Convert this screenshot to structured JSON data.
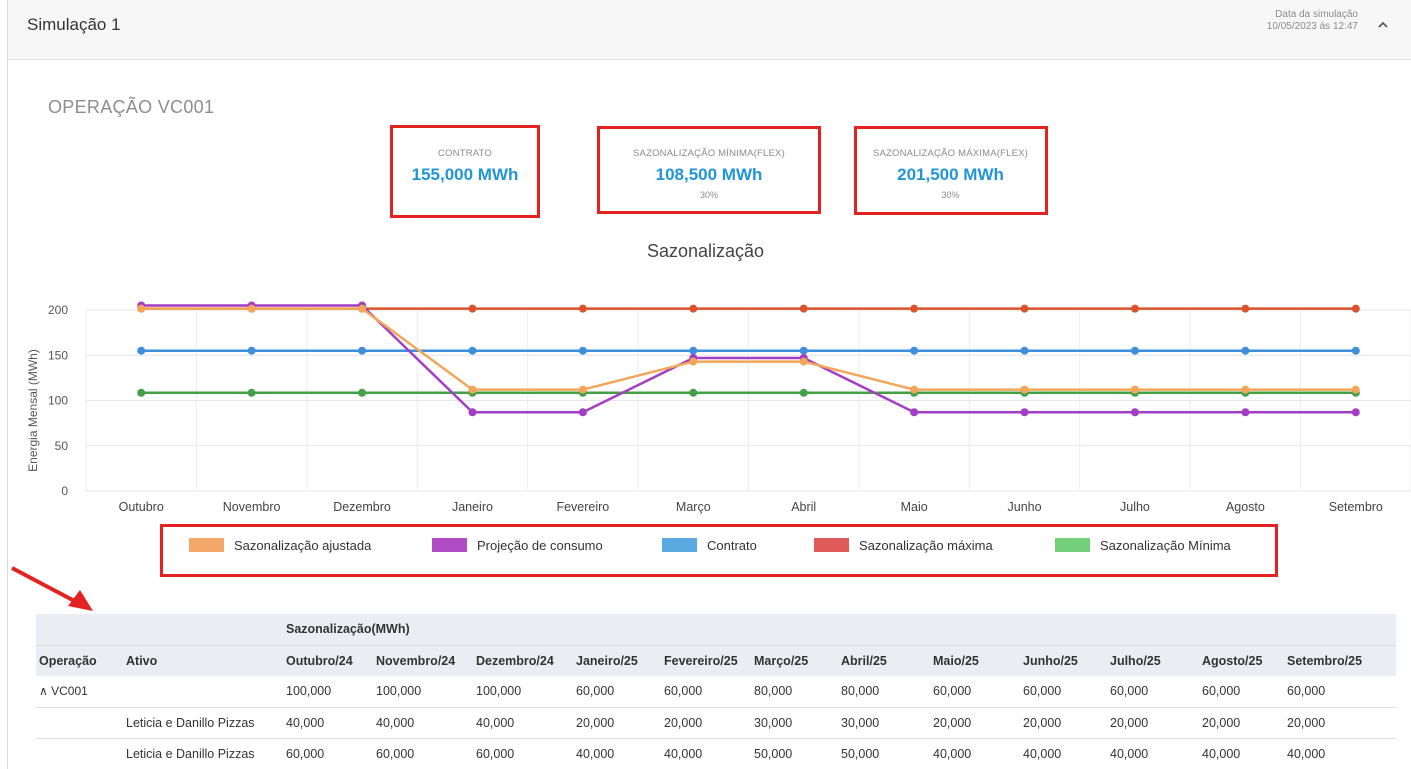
{
  "header": {
    "title": "Simulação 1",
    "date_label": "Data da simulação",
    "date_value": "10/05/2023 às 12:47"
  },
  "operation_title": "OPERAÇÃO VC001",
  "kpis": [
    {
      "label": "CONTRATO",
      "value": "155,000 MWh",
      "pct": ""
    },
    {
      "label": "SAZONALIZAÇÃO MÍNIMA(FLEX)",
      "value": "108,500 MWh",
      "pct": "30%"
    },
    {
      "label": "SAZONALIZAÇÃO MÁXIMA(FLEX)",
      "value": "201,500 MWh",
      "pct": "30%"
    }
  ],
  "chart_data": {
    "type": "line",
    "title": "Sazonalização",
    "ylabel": "Energia Mensal (MWh)",
    "xlabel": "",
    "ylim": [
      0,
      200
    ],
    "yticks": [
      0,
      50,
      100,
      150,
      200
    ],
    "categories": [
      "Outubro",
      "Novembro",
      "Dezembro",
      "Janeiro",
      "Fevereiro",
      "Março",
      "Abril",
      "Maio",
      "Junho",
      "Julho",
      "Agosto",
      "Setembro"
    ],
    "series": [
      {
        "name": "Sazonalização Mínima",
        "color": "#43a047",
        "values": [
          108.5,
          108.5,
          108.5,
          108.5,
          108.5,
          108.5,
          108.5,
          108.5,
          108.5,
          108.5,
          108.5,
          108.5
        ]
      },
      {
        "name": "Contrato",
        "color": "#3d8fdc",
        "values": [
          155,
          155,
          155,
          155,
          155,
          155,
          155,
          155,
          155,
          155,
          155,
          155
        ]
      },
      {
        "name": "Sazonalização máxima",
        "color": "#d9532c",
        "values": [
          201.5,
          201.5,
          201.5,
          201.5,
          201.5,
          201.5,
          201.5,
          201.5,
          201.5,
          201.5,
          201.5,
          201.5
        ]
      },
      {
        "name": "Projeção de consumo",
        "color": "#a23dc4",
        "values": [
          205,
          205,
          205,
          87,
          87,
          147,
          147,
          87,
          87,
          87,
          87,
          87
        ]
      },
      {
        "name": "Sazonalização ajustada",
        "color": "#f2a65a",
        "values": [
          201.5,
          201.5,
          201.5,
          112,
          112,
          143,
          143,
          112,
          112,
          112,
          112,
          112
        ]
      }
    ],
    "legend": [
      {
        "name": "Sazonalização ajustada",
        "color": "#f4a96a"
      },
      {
        "name": "Projeção de consumo",
        "color": "#b04cc4"
      },
      {
        "name": "Contrato",
        "color": "#5aa9e0"
      },
      {
        "name": "Sazonalização máxima",
        "color": "#e05a5a"
      },
      {
        "name": "Sazonalização Mínima",
        "color": "#74cf7a"
      }
    ],
    "legend_position": "bottom",
    "grid": true
  },
  "table": {
    "group_label": "Sazonalização(MWh)",
    "headers": [
      "Operação",
      "Ativo",
      "Outubro/24",
      "Novembro/24",
      "Dezembro/24",
      "Janeiro/25",
      "Fevereiro/25",
      "Março/25",
      "Abril/25",
      "Maio/25",
      "Junho/25",
      "Julho/25",
      "Agosto/25",
      "Setembro/25"
    ],
    "rows": [
      [
        "^ VC001",
        "",
        "100,000",
        "100,000",
        "100,000",
        "60,000",
        "60,000",
        "80,000",
        "80,000",
        "60,000",
        "60,000",
        "60,000",
        "60,000",
        "60,000"
      ],
      [
        "",
        "Leticia e Danillo Pizzas",
        "40,000",
        "40,000",
        "40,000",
        "20,000",
        "20,000",
        "30,000",
        "30,000",
        "20,000",
        "20,000",
        "20,000",
        "20,000",
        "20,000"
      ],
      [
        "",
        "Leticia e Danillo Pizzas",
        "60,000",
        "60,000",
        "60,000",
        "40,000",
        "40,000",
        "50,000",
        "50,000",
        "40,000",
        "40,000",
        "40,000",
        "40,000",
        "40,000"
      ]
    ]
  }
}
